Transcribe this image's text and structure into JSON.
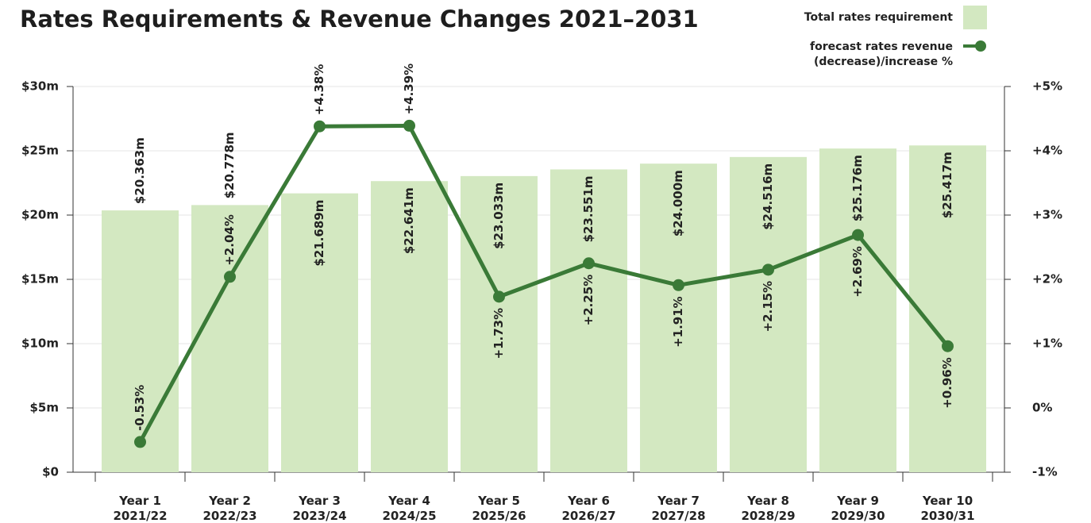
{
  "chart_data": {
    "type": "bar_line",
    "title": "Rates Requirements & Revenue Changes 2021–2031",
    "categories": [
      [
        "Year 1",
        "2021/22"
      ],
      [
        "Year 2",
        "2022/23"
      ],
      [
        "Year 3",
        "2023/24"
      ],
      [
        "Year 4",
        "2024/25"
      ],
      [
        "Year 5",
        "2025/26"
      ],
      [
        "Year 6",
        "2026/27"
      ],
      [
        "Year 7",
        "2027/28"
      ],
      [
        "Year 8",
        "2028/29"
      ],
      [
        "Year 9",
        "2029/30"
      ],
      [
        "Year 10",
        "2030/31"
      ]
    ],
    "series": [
      {
        "name": "Total rates requirement",
        "type": "bar",
        "color": "#d3e8c1",
        "values": [
          20.363,
          20.778,
          21.689,
          22.641,
          23.033,
          23.551,
          24.0,
          24.516,
          25.176,
          25.417
        ],
        "value_labels": [
          "$20.363m",
          "$20.778m",
          "$21.689m",
          "$22.641m",
          "$23.033m",
          "$23.551m",
          "$24.000m",
          "$24.516m",
          "$25.176m",
          "$25.417m"
        ]
      },
      {
        "name": "forecast rates revenue (decrease)/increase %",
        "type": "line",
        "axis": "y2",
        "color": "#3a7a37",
        "values": [
          -0.53,
          2.04,
          4.38,
          4.39,
          1.73,
          2.25,
          1.91,
          2.15,
          2.69,
          0.96
        ],
        "value_labels": [
          "-0.53%",
          "+2.04%",
          "+4.38%",
          "+4.39%",
          "+1.73%",
          "+2.25%",
          "+1.91%",
          "+2.15%",
          "+2.69%",
          "+0.96%"
        ]
      }
    ],
    "ylim": [
      0,
      30
    ],
    "yticks": [
      {
        "value": 0,
        "label": "$0"
      },
      {
        "value": 5,
        "label": "$5m"
      },
      {
        "value": 10,
        "label": "$10m"
      },
      {
        "value": 15,
        "label": "$15m"
      },
      {
        "value": 20,
        "label": "$20m"
      },
      {
        "value": 25,
        "label": "$25m"
      },
      {
        "value": 30,
        "label": "$30m"
      }
    ],
    "y2lim": [
      -1,
      5
    ],
    "y2ticks": [
      {
        "value": -1,
        "label": "-1%"
      },
      {
        "value": 0,
        "label": "0%"
      },
      {
        "value": 1,
        "label": "+1%"
      },
      {
        "value": 2,
        "label": "+2%"
      },
      {
        "value": 3,
        "label": "+3%"
      },
      {
        "value": 4,
        "label": "+4%"
      },
      {
        "value": 5,
        "label": "+5%"
      }
    ],
    "grid": true,
    "legend": "top-right"
  }
}
